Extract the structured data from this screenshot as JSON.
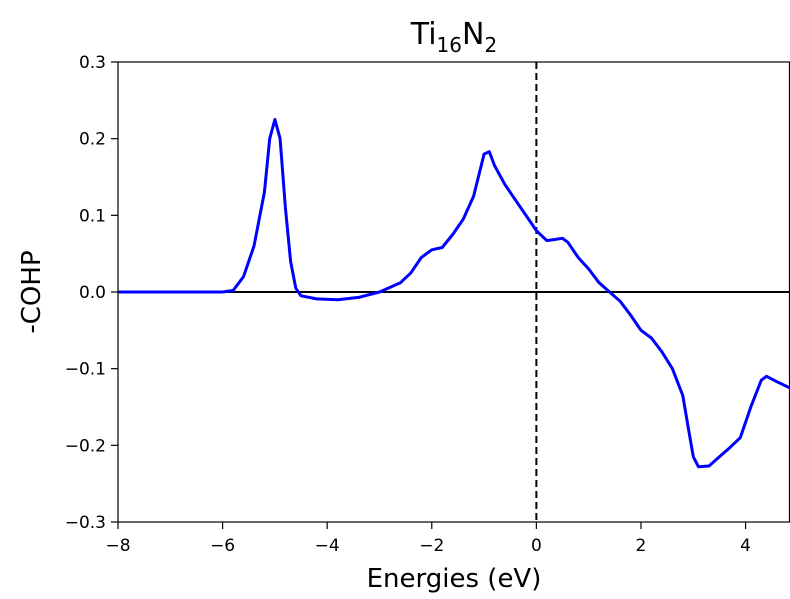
{
  "chart_data": {
    "type": "line",
    "title": [
      "Ti",
      "16",
      "N",
      "2"
    ],
    "xlabel": "Energies (eV)",
    "ylabel": "-COHP",
    "xlim": [
      -8,
      4.84
    ],
    "ylim": [
      -0.3,
      0.3
    ],
    "xticks": [
      {
        "value": -8,
        "label": "−8"
      },
      {
        "value": -6,
        "label": "−6"
      },
      {
        "value": -4,
        "label": "−4"
      },
      {
        "value": -2,
        "label": "−2"
      },
      0,
      2,
      4
    ],
    "yticks": [
      {
        "value": -0.3,
        "label": "−0.3"
      },
      {
        "value": -0.2,
        "label": "−0.2"
      },
      {
        "value": -0.1,
        "label": "−0.1"
      },
      {
        "value": 0,
        "label": "0.0"
      },
      0.1,
      0.2,
      0.3
    ],
    "hline": 0,
    "vline": 0,
    "series": [
      {
        "color": "#0000ff",
        "x": [
          -8,
          -6,
          -5.8,
          -5.6,
          -5.4,
          -5.2,
          -5.1,
          -5.0,
          -4.9,
          -4.8,
          -4.7,
          -4.6,
          -4.5,
          -4.2,
          -3.8,
          -3.4,
          -3.0,
          -2.6,
          -2.4,
          -2.2,
          -2.0,
          -1.8,
          -1.6,
          -1.4,
          -1.2,
          -1.0,
          -0.9,
          -0.8,
          -0.6,
          -0.5,
          -0.3,
          -0.1,
          0,
          0.2,
          0.3,
          0.5,
          0.6,
          0.8,
          1.0,
          1.2,
          1.4,
          1.6,
          1.8,
          2.0,
          2.2,
          2.4,
          2.6,
          2.8,
          2.9,
          3.0,
          3.1,
          3.3,
          3.5,
          3.7,
          3.9,
          4.1,
          4.3,
          4.4,
          4.6,
          4.84
        ],
        "values": [
          0,
          0,
          0.002,
          0.02,
          0.06,
          0.13,
          0.2,
          0.225,
          0.2,
          0.11,
          0.04,
          0.005,
          -0.005,
          -0.009,
          -0.01,
          -0.007,
          0,
          0.012,
          0.025,
          0.045,
          0.055,
          0.058,
          0.075,
          0.095,
          0.125,
          0.18,
          0.183,
          0.165,
          0.14,
          0.13,
          0.11,
          0.09,
          0.08,
          0.067,
          0.068,
          0.07,
          0.065,
          0.045,
          0.03,
          0.012,
          0,
          -0.012,
          -0.03,
          -0.05,
          -0.06,
          -0.078,
          -0.1,
          -0.135,
          -0.175,
          -0.215,
          -0.228,
          -0.227,
          -0.215,
          -0.203,
          -0.19,
          -0.15,
          -0.115,
          -0.11,
          -0.117,
          -0.125
        ]
      }
    ]
  }
}
